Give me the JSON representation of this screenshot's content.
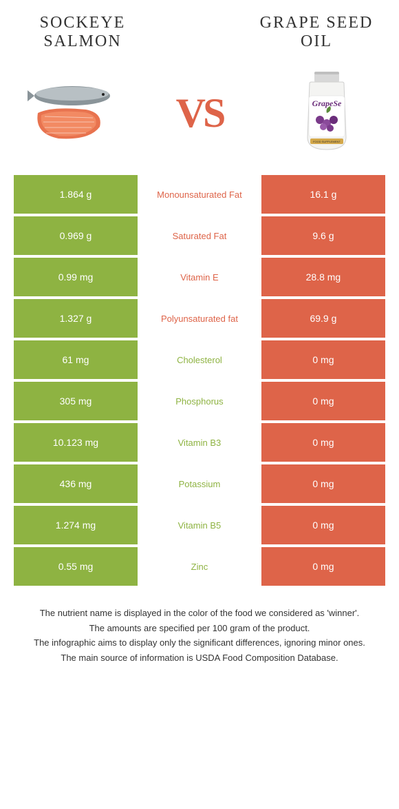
{
  "header": {
    "left_title": "SOCKEYE SALMON",
    "right_title": "GRAPE SEED OIL",
    "vs": "VS"
  },
  "colors": {
    "green": "#8eb342",
    "orange": "#de6449",
    "white": "#ffffff",
    "text_dark": "#333333"
  },
  "rows": [
    {
      "left": "1.864 g",
      "label": "Monounsaturated Fat",
      "right": "16.1 g",
      "winner": "right"
    },
    {
      "left": "0.969 g",
      "label": "Saturated Fat",
      "right": "9.6 g",
      "winner": "right"
    },
    {
      "left": "0.99 mg",
      "label": "Vitamin E",
      "right": "28.8 mg",
      "winner": "right"
    },
    {
      "left": "1.327 g",
      "label": "Polyunsaturated fat",
      "right": "69.9 g",
      "winner": "right"
    },
    {
      "left": "61 mg",
      "label": "Cholesterol",
      "right": "0 mg",
      "winner": "left"
    },
    {
      "left": "305 mg",
      "label": "Phosphorus",
      "right": "0 mg",
      "winner": "left"
    },
    {
      "left": "10.123 mg",
      "label": "Vitamin B3",
      "right": "0 mg",
      "winner": "left"
    },
    {
      "left": "436 mg",
      "label": "Potassium",
      "right": "0 mg",
      "winner": "left"
    },
    {
      "left": "1.274 mg",
      "label": "Vitamin B5",
      "right": "0 mg",
      "winner": "left"
    },
    {
      "left": "0.55 mg",
      "label": "Zinc",
      "right": "0 mg",
      "winner": "left"
    }
  ],
  "footer": {
    "line1": "The nutrient name is displayed in the color of the food we considered as 'winner'.",
    "line2": "The amounts are specified per 100 gram of the product.",
    "line3": "The infographic aims to display only the significant differences, ignoring minor ones.",
    "line4": "The main source of information is USDA Food Composition Database."
  }
}
